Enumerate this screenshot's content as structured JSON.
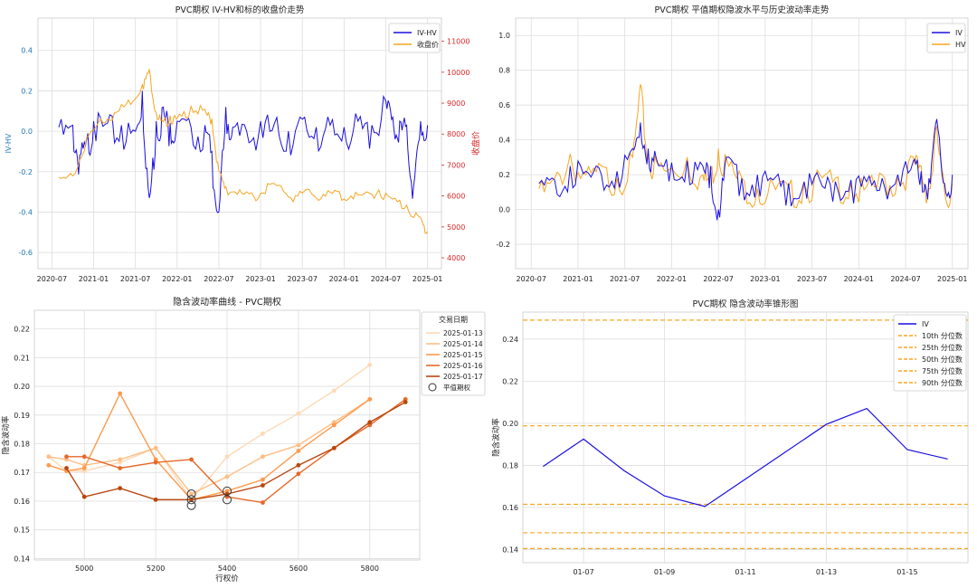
{
  "chart_data": [
    {
      "type": "line",
      "title": "PVC期权 IV-HV和标的收盘价走势",
      "xlabel": "",
      "ylabel": "IV-HV",
      "ylabel_right": "收盘价",
      "x_ticks": [
        "2020-07",
        "2021-01",
        "2021-07",
        "2022-01",
        "2022-07",
        "2023-01",
        "2023-07",
        "2024-01",
        "2024-07",
        "2025-01"
      ],
      "y_ticks": [
        "-0.6",
        "-0.4",
        "-0.2",
        "0.0",
        "0.2",
        "0.4"
      ],
      "y_ticks_right": [
        "4000",
        "5000",
        "6000",
        "7000",
        "8000",
        "9000",
        "10000",
        "11000"
      ],
      "ylim": [
        -0.68,
        0.56
      ],
      "ylim_right": [
        3650,
        11750
      ],
      "legend": "top-right",
      "colors": {
        "IV-HV": "#1a0fe0",
        "收盘价": "#f5a623",
        "right_axis": "#d62728",
        "left_axis": "#1f77b4"
      },
      "series": [
        {
          "name": "IV-HV",
          "axis": "left",
          "x": [
            "2020-08",
            "2020-10",
            "2020-11",
            "2020-12",
            "2021-01",
            "2021-03",
            "2021-05",
            "2021-07",
            "2021-08",
            "2021-09",
            "2021-10",
            "2021-11",
            "2021-12",
            "2022-01",
            "2022-03",
            "2022-05",
            "2022-06",
            "2022-07",
            "2022-08",
            "2022-09",
            "2022-11",
            "2023-01",
            "2023-03",
            "2023-05",
            "2023-07",
            "2023-09",
            "2023-11",
            "2024-01",
            "2024-03",
            "2024-05",
            "2024-07",
            "2024-08",
            "2024-09",
            "2024-10",
            "2024-11",
            "2024-12",
            "2025-01"
          ],
          "values": [
            0.02,
            0.03,
            -0.12,
            -0.04,
            0.05,
            0.04,
            0.03,
            0.0,
            0.2,
            -0.33,
            0.05,
            0.12,
            0.04,
            0.05,
            0.02,
            0.03,
            -0.1,
            -0.4,
            0.12,
            0.02,
            0.0,
            0.05,
            0.04,
            0.0,
            0.06,
            0.02,
            0.03,
            0.02,
            0.05,
            0.03,
            0.15,
            0.07,
            0.05,
            0.03,
            -0.27,
            0.05,
            0.03
          ]
        },
        {
          "name": "收盘价",
          "axis": "right",
          "x": [
            "2020-08",
            "2020-10",
            "2020-12",
            "2021-02",
            "2021-04",
            "2021-06",
            "2021-08",
            "2021-09",
            "2021-10",
            "2021-11",
            "2021-12",
            "2022-01",
            "2022-03",
            "2022-05",
            "2022-06",
            "2022-07",
            "2022-08",
            "2022-10",
            "2022-12",
            "2023-02",
            "2023-04",
            "2023-06",
            "2023-08",
            "2023-10",
            "2023-12",
            "2024-02",
            "2024-04",
            "2024-06",
            "2024-08",
            "2024-10",
            "2024-12",
            "2025-01"
          ],
          "values": [
            6600,
            6650,
            7900,
            8500,
            8700,
            9100,
            9600,
            10100,
            8700,
            8400,
            8600,
            8500,
            8900,
            8800,
            8500,
            6800,
            6300,
            6200,
            6000,
            6400,
            6300,
            6000,
            6200,
            6050,
            6150,
            6000,
            6100,
            6200,
            5900,
            5700,
            5300,
            4850
          ]
        }
      ]
    },
    {
      "type": "line",
      "title": "PVC期权 平值期权隐波水平与历史波动率走势",
      "xlabel": "",
      "ylabel": "",
      "x_ticks": [
        "2020-07",
        "2021-01",
        "2021-07",
        "2022-01",
        "2022-07",
        "2023-01",
        "2023-07",
        "2024-01",
        "2024-07",
        "2025-01"
      ],
      "y_ticks": [
        "-0.2",
        "0.0",
        "0.2",
        "0.4",
        "0.6",
        "0.8",
        "1.0"
      ],
      "ylim": [
        -0.34,
        1.1
      ],
      "legend": "top-right",
      "colors": {
        "IV": "#1a0fe0",
        "HV": "#f5a623"
      },
      "series": [
        {
          "name": "IV",
          "x": [
            "2020-08",
            "2020-10",
            "2020-12",
            "2021-02",
            "2021-04",
            "2021-06",
            "2021-08",
            "2021-09",
            "2021-10",
            "2021-11",
            "2022-01",
            "2022-03",
            "2022-05",
            "2022-06",
            "2022-07",
            "2022-08",
            "2022-10",
            "2022-12",
            "2023-02",
            "2023-04",
            "2023-06",
            "2023-08",
            "2023-10",
            "2023-12",
            "2024-02",
            "2024-04",
            "2024-06",
            "2024-08",
            "2024-09",
            "2024-10",
            "2024-11",
            "2024-12",
            "2025-01"
          ],
          "values": [
            0.15,
            0.17,
            0.25,
            0.22,
            0.2,
            0.22,
            0.35,
            0.5,
            0.35,
            0.3,
            0.27,
            0.28,
            0.25,
            0.25,
            0.0,
            0.3,
            0.18,
            0.2,
            0.17,
            0.15,
            0.16,
            0.17,
            0.16,
            0.17,
            0.16,
            0.18,
            0.2,
            0.28,
            0.22,
            0.18,
            0.52,
            0.15,
            0.2
          ]
        },
        {
          "name": "HV",
          "x": [
            "2020-08",
            "2020-10",
            "2020-12",
            "2021-02",
            "2021-04",
            "2021-06",
            "2021-08",
            "2021-09",
            "2021-10",
            "2021-11",
            "2022-01",
            "2022-03",
            "2022-05",
            "2022-06",
            "2022-07",
            "2022-08",
            "2022-10",
            "2022-12",
            "2023-02",
            "2023-04",
            "2023-06",
            "2023-08",
            "2023-10",
            "2023-12",
            "2024-02",
            "2024-04",
            "2024-06",
            "2024-08",
            "2024-09",
            "2024-10",
            "2024-11",
            "2024-12",
            "2025-01"
          ],
          "values": [
            0.12,
            0.18,
            0.32,
            0.2,
            0.25,
            0.18,
            0.3,
            0.72,
            0.3,
            0.28,
            0.24,
            0.3,
            0.2,
            0.22,
            0.35,
            0.3,
            0.18,
            0.12,
            0.15,
            0.13,
            0.15,
            0.2,
            0.18,
            0.15,
            0.13,
            0.2,
            0.18,
            0.3,
            0.25,
            0.12,
            0.48,
            0.1,
            0.15
          ]
        }
      ]
    },
    {
      "type": "line",
      "title": "隐含波动率曲线 - PVC期权",
      "xlabel": "行权价",
      "ylabel": "隐含波动率",
      "x_ticks": [
        "5000",
        "5200",
        "5400",
        "5600",
        "5800"
      ],
      "y_ticks": [
        "0.14",
        "0.15",
        "0.16",
        "0.17",
        "0.18",
        "0.19",
        "0.20",
        "0.21",
        "0.22"
      ],
      "xlim": [
        4860,
        5940
      ],
      "ylim": [
        0.1395,
        0.2265
      ],
      "legend_title": "交易日期",
      "legend": "top-right",
      "atm_label": "平值期权",
      "series": [
        {
          "name": "2025-01-13",
          "color": "#fdd9b5",
          "x": [
            4900,
            4950,
            5000,
            5100,
            5200,
            5300,
            5400,
            5500,
            5600,
            5700,
            5800
          ],
          "values": [
            0.1755,
            0.1705,
            0.1705,
            0.1735,
            0.1785,
            0.1605,
            0.1755,
            0.1835,
            0.1905,
            0.1985,
            0.2075
          ]
        },
        {
          "name": "2025-01-14",
          "color": "#fdbe85",
          "x": [
            4900,
            4950,
            5000,
            5100,
            5200,
            5300,
            5400,
            5500,
            5600,
            5700,
            5800
          ],
          "values": [
            0.1755,
            0.1745,
            0.1725,
            0.1745,
            0.1785,
            0.1625,
            0.1685,
            0.1755,
            0.1795,
            0.1875,
            0.1955
          ]
        },
        {
          "name": "2025-01-15",
          "color": "#fd9a4e",
          "x": [
            4900,
            4950,
            5000,
            5100,
            5200,
            5300,
            5400,
            5500,
            5600,
            5700,
            5800
          ],
          "values": [
            0.1725,
            0.1705,
            0.1715,
            0.1975,
            0.1745,
            0.1605,
            0.1635,
            0.1675,
            0.1775,
            0.1865,
            0.1955
          ]
        },
        {
          "name": "2025-01-16",
          "color": "#e6682a",
          "x": [
            4950,
            5000,
            5100,
            5200,
            5300,
            5400,
            5500,
            5600,
            5700,
            5800,
            5900
          ],
          "values": [
            0.1755,
            0.1755,
            0.1715,
            0.1735,
            0.1745,
            0.1615,
            0.1595,
            0.1695,
            0.1785,
            0.1865,
            0.1955
          ]
        },
        {
          "name": "2025-01-17",
          "color": "#b8470e",
          "x": [
            4950,
            5000,
            5100,
            5200,
            5300,
            5400,
            5500,
            5600,
            5700,
            5800,
            5900
          ],
          "values": [
            0.1715,
            0.1615,
            0.1645,
            0.1605,
            0.1605,
            0.1625,
            0.1655,
            0.1725,
            0.1785,
            0.1875,
            0.1945
          ]
        }
      ],
      "atm_points": [
        {
          "x": 5300,
          "y": 0.1625
        },
        {
          "x": 5300,
          "y": 0.1605
        },
        {
          "x": 5300,
          "y": 0.1585
        },
        {
          "x": 5400,
          "y": 0.1635
        },
        {
          "x": 5400,
          "y": 0.1605
        }
      ]
    },
    {
      "type": "line",
      "title": "PVC期权 隐含波动率锥形图",
      "xlabel": "",
      "ylabel": "隐含波动率",
      "x_ticks": [
        "01-07",
        "01-09",
        "01-11",
        "01-13",
        "01-15"
      ],
      "y_ticks": [
        "0.14",
        "0.16",
        "0.18",
        "0.20",
        "0.22",
        "0.24"
      ],
      "xlim": [
        "01-05 12:00",
        "01-16 12:00"
      ],
      "ylim": [
        0.1338,
        0.2528
      ],
      "legend": "top-right",
      "colors": {
        "IV": "#1a0fe0",
        "percentile": "#f5a623"
      },
      "series": [
        {
          "name": "IV",
          "x": [
            "01-06",
            "01-07",
            "01-08",
            "01-09",
            "01-10",
            "01-13",
            "01-14",
            "01-15",
            "01-16"
          ],
          "values": [
            0.1795,
            0.1925,
            0.1775,
            0.1655,
            0.1605,
            0.1995,
            0.207,
            0.1875,
            0.183
          ]
        }
      ],
      "percentiles": [
        {
          "name": "10th 分位数",
          "value": 0.1405
        },
        {
          "name": "25th 分位数",
          "value": 0.148
        },
        {
          "name": "50th 分位数",
          "value": 0.1615
        },
        {
          "name": "75th 分位数",
          "value": 0.1988
        },
        {
          "name": "90th 分位数",
          "value": 0.249
        }
      ]
    }
  ]
}
